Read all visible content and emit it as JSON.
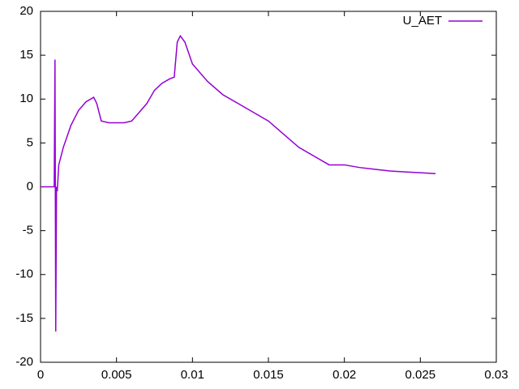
{
  "chart_data": {
    "type": "line",
    "x": [
      0,
      0.0009,
      0.00095,
      0.001,
      0.00105,
      0.0011,
      0.0012,
      0.0015,
      0.002,
      0.0025,
      0.003,
      0.0035,
      0.0037,
      0.004,
      0.0045,
      0.005,
      0.0055,
      0.006,
      0.0065,
      0.007,
      0.0075,
      0.008,
      0.0085,
      0.0088,
      0.009,
      0.0092,
      0.0095,
      0.01,
      0.011,
      0.012,
      0.013,
      0.014,
      0.015,
      0.016,
      0.017,
      0.018,
      0.019,
      0.02,
      0.021,
      0.022,
      0.023,
      0.024,
      0.025,
      0.026
    ],
    "series": [
      {
        "name": "U_AET",
        "color": "#9400d3",
        "values": [
          0,
          0,
          14.5,
          -16.5,
          0,
          -0.5,
          2.5,
          4.5,
          7,
          8.7,
          9.7,
          10.2,
          9.5,
          7.5,
          7.3,
          7.3,
          7.3,
          7.5,
          8.5,
          9.5,
          11,
          11.8,
          12.3,
          12.5,
          16.5,
          17.2,
          16.5,
          14,
          12,
          10.5,
          9.5,
          8.5,
          7.5,
          6,
          4.5,
          3.5,
          2.5,
          2.5,
          2.2,
          2,
          1.8,
          1.7,
          1.6,
          1.5
        ]
      }
    ],
    "xlim": [
      0,
      0.03
    ],
    "xticks": [
      0,
      0.005,
      0.01,
      0.015,
      0.02,
      0.025,
      0.03
    ],
    "ylim": [
      -20,
      20
    ],
    "yticks": [
      -20,
      -15,
      -10,
      -5,
      0,
      5,
      10,
      15,
      20
    ],
    "grid": false,
    "legend": "top-right"
  }
}
